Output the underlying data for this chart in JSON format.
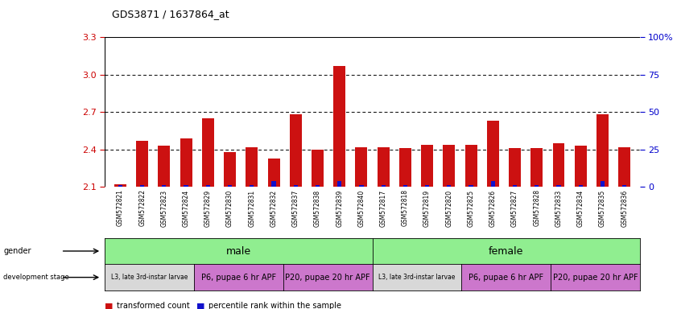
{
  "title": "GDS3871 / 1637864_at",
  "samples": [
    "GSM572821",
    "GSM572822",
    "GSM572823",
    "GSM572824",
    "GSM572829",
    "GSM572830",
    "GSM572831",
    "GSM572832",
    "GSM572837",
    "GSM572838",
    "GSM572839",
    "GSM572840",
    "GSM572817",
    "GSM572818",
    "GSM572819",
    "GSM572820",
    "GSM572825",
    "GSM572826",
    "GSM572827",
    "GSM572828",
    "GSM572833",
    "GSM572834",
    "GSM572835",
    "GSM572836"
  ],
  "red_values": [
    2.12,
    2.47,
    2.43,
    2.49,
    2.65,
    2.38,
    2.42,
    2.33,
    2.68,
    2.4,
    3.07,
    2.42,
    2.42,
    2.41,
    2.44,
    2.44,
    2.44,
    2.63,
    2.41,
    2.41,
    2.45,
    2.43,
    2.68,
    2.42
  ],
  "blue_pct": [
    1,
    1,
    1,
    1,
    1,
    1,
    1,
    4,
    1,
    1,
    4,
    1,
    1,
    1,
    1,
    1,
    1,
    4,
    1,
    1,
    1,
    1,
    4,
    1
  ],
  "ymin": 2.1,
  "ymax": 3.3,
  "yticks_left": [
    2.1,
    2.4,
    2.7,
    3.0,
    3.3
  ],
  "yticks_right": [
    0,
    25,
    50,
    75,
    100
  ],
  "ytick_right_labels": [
    "0",
    "25",
    "50",
    "75",
    "100%"
  ],
  "dotted_lines": [
    2.4,
    2.7,
    3.0
  ],
  "male_color": "#90EE90",
  "female_color": "#90EE90",
  "l3_color": "#D8D8D8",
  "p6_color": "#CC77CC",
  "p20_color": "#CC77CC",
  "red_bar_color": "#CC1111",
  "blue_bar_color": "#1111CC",
  "sample_label_bg": "#CCCCCC",
  "bg_color": "#FFFFFF",
  "title_color": "#000000",
  "left_tick_color": "#CC0000",
  "right_tick_color": "#0000CC"
}
